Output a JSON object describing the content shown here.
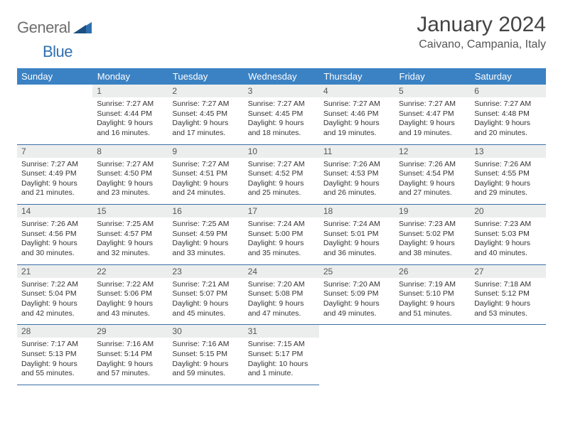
{
  "brand": {
    "text1": "General",
    "text2": "Blue",
    "color_gray": "#6e6e6e",
    "color_blue": "#2f6fb0"
  },
  "title": "January 2024",
  "subtitle": "Caivano, Campania, Italy",
  "header_bg": "#3b82c4",
  "header_fg": "#ffffff",
  "rule_color": "#3b6fa8",
  "daynum_bg": "#eceeee",
  "weekdays": [
    "Sunday",
    "Monday",
    "Tuesday",
    "Wednesday",
    "Thursday",
    "Friday",
    "Saturday"
  ],
  "weeks": [
    [
      null,
      {
        "n": "1",
        "sr": "7:27 AM",
        "ss": "4:44 PM",
        "dl": "9 hours and 16 minutes."
      },
      {
        "n": "2",
        "sr": "7:27 AM",
        "ss": "4:45 PM",
        "dl": "9 hours and 17 minutes."
      },
      {
        "n": "3",
        "sr": "7:27 AM",
        "ss": "4:45 PM",
        "dl": "9 hours and 18 minutes."
      },
      {
        "n": "4",
        "sr": "7:27 AM",
        "ss": "4:46 PM",
        "dl": "9 hours and 19 minutes."
      },
      {
        "n": "5",
        "sr": "7:27 AM",
        "ss": "4:47 PM",
        "dl": "9 hours and 19 minutes."
      },
      {
        "n": "6",
        "sr": "7:27 AM",
        "ss": "4:48 PM",
        "dl": "9 hours and 20 minutes."
      }
    ],
    [
      {
        "n": "7",
        "sr": "7:27 AM",
        "ss": "4:49 PM",
        "dl": "9 hours and 21 minutes."
      },
      {
        "n": "8",
        "sr": "7:27 AM",
        "ss": "4:50 PM",
        "dl": "9 hours and 23 minutes."
      },
      {
        "n": "9",
        "sr": "7:27 AM",
        "ss": "4:51 PM",
        "dl": "9 hours and 24 minutes."
      },
      {
        "n": "10",
        "sr": "7:27 AM",
        "ss": "4:52 PM",
        "dl": "9 hours and 25 minutes."
      },
      {
        "n": "11",
        "sr": "7:26 AM",
        "ss": "4:53 PM",
        "dl": "9 hours and 26 minutes."
      },
      {
        "n": "12",
        "sr": "7:26 AM",
        "ss": "4:54 PM",
        "dl": "9 hours and 27 minutes."
      },
      {
        "n": "13",
        "sr": "7:26 AM",
        "ss": "4:55 PM",
        "dl": "9 hours and 29 minutes."
      }
    ],
    [
      {
        "n": "14",
        "sr": "7:26 AM",
        "ss": "4:56 PM",
        "dl": "9 hours and 30 minutes."
      },
      {
        "n": "15",
        "sr": "7:25 AM",
        "ss": "4:57 PM",
        "dl": "9 hours and 32 minutes."
      },
      {
        "n": "16",
        "sr": "7:25 AM",
        "ss": "4:59 PM",
        "dl": "9 hours and 33 minutes."
      },
      {
        "n": "17",
        "sr": "7:24 AM",
        "ss": "5:00 PM",
        "dl": "9 hours and 35 minutes."
      },
      {
        "n": "18",
        "sr": "7:24 AM",
        "ss": "5:01 PM",
        "dl": "9 hours and 36 minutes."
      },
      {
        "n": "19",
        "sr": "7:23 AM",
        "ss": "5:02 PM",
        "dl": "9 hours and 38 minutes."
      },
      {
        "n": "20",
        "sr": "7:23 AM",
        "ss": "5:03 PM",
        "dl": "9 hours and 40 minutes."
      }
    ],
    [
      {
        "n": "21",
        "sr": "7:22 AM",
        "ss": "5:04 PM",
        "dl": "9 hours and 42 minutes."
      },
      {
        "n": "22",
        "sr": "7:22 AM",
        "ss": "5:06 PM",
        "dl": "9 hours and 43 minutes."
      },
      {
        "n": "23",
        "sr": "7:21 AM",
        "ss": "5:07 PM",
        "dl": "9 hours and 45 minutes."
      },
      {
        "n": "24",
        "sr": "7:20 AM",
        "ss": "5:08 PM",
        "dl": "9 hours and 47 minutes."
      },
      {
        "n": "25",
        "sr": "7:20 AM",
        "ss": "5:09 PM",
        "dl": "9 hours and 49 minutes."
      },
      {
        "n": "26",
        "sr": "7:19 AM",
        "ss": "5:10 PM",
        "dl": "9 hours and 51 minutes."
      },
      {
        "n": "27",
        "sr": "7:18 AM",
        "ss": "5:12 PM",
        "dl": "9 hours and 53 minutes."
      }
    ],
    [
      {
        "n": "28",
        "sr": "7:17 AM",
        "ss": "5:13 PM",
        "dl": "9 hours and 55 minutes."
      },
      {
        "n": "29",
        "sr": "7:16 AM",
        "ss": "5:14 PM",
        "dl": "9 hours and 57 minutes."
      },
      {
        "n": "30",
        "sr": "7:16 AM",
        "ss": "5:15 PM",
        "dl": "9 hours and 59 minutes."
      },
      {
        "n": "31",
        "sr": "7:15 AM",
        "ss": "5:17 PM",
        "dl": "10 hours and 1 minute."
      },
      null,
      null,
      null
    ]
  ],
  "labels": {
    "sunrise": "Sunrise:",
    "sunset": "Sunset:",
    "daylight": "Daylight:"
  }
}
